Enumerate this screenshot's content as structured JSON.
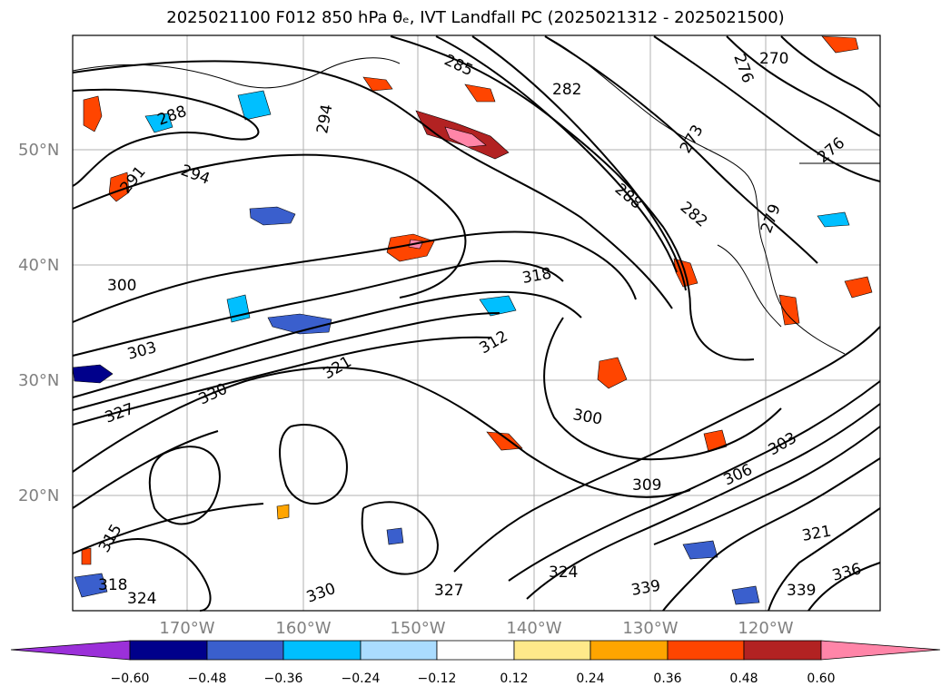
{
  "title": "2025021100 F012 850 hPa θₑ, IVT Landfall PC (2025021312 - 2025021500)",
  "lat_labels": [
    "50°N",
    "40°N",
    "30°N",
    "20°N"
  ],
  "lon_labels": [
    "170°W",
    "160°W",
    "150°W",
    "140°W",
    "130°W",
    "120°W"
  ],
  "contour_labels": [
    "285",
    "282",
    "276",
    "270",
    "288",
    "294",
    "273",
    "276",
    "291",
    "294",
    "288",
    "282",
    "279",
    "300",
    "318",
    "303",
    "312",
    "321",
    "327",
    "330",
    "300",
    "309",
    "306",
    "303",
    "321",
    "339",
    "336",
    "339",
    "327",
    "330",
    "324",
    "318",
    "315",
    "324"
  ],
  "colorbar": {
    "ticks": [
      "−0.60",
      "−0.48",
      "−0.36",
      "−0.24",
      "−0.12",
      "0.12",
      "0.24",
      "0.36",
      "0.48",
      "0.60"
    ],
    "colors": [
      "#9b30d9",
      "#00008b",
      "#3a5fcd",
      "#00bfff",
      "#aadcff",
      "#ffffff",
      "#ffe98a",
      "#ffa500",
      "#ff4500",
      "#b22222",
      "#ff85a8"
    ]
  }
}
